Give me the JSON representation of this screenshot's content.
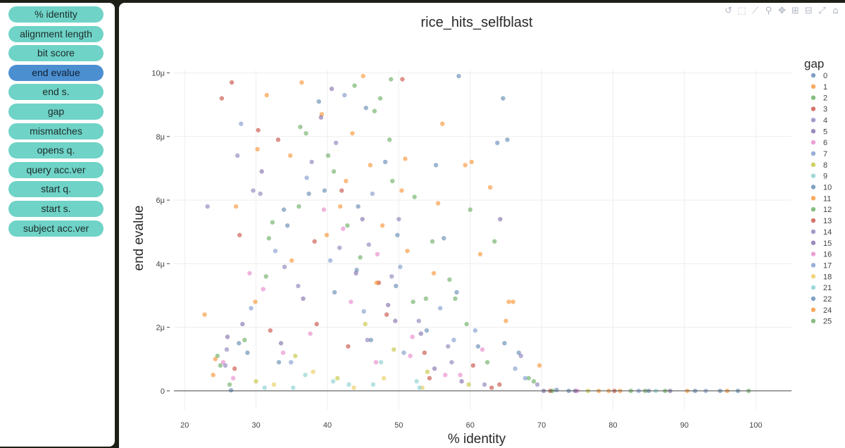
{
  "sidebar": {
    "buttons": [
      {
        "label": "% identity",
        "active": false
      },
      {
        "label": "alignment length",
        "active": false
      },
      {
        "label": "bit score",
        "active": false
      },
      {
        "label": "end evalue",
        "active": true
      },
      {
        "label": "end s.",
        "active": false
      },
      {
        "label": "gap",
        "active": false
      },
      {
        "label": "mismatches",
        "active": false
      },
      {
        "label": "opens q.",
        "active": false
      },
      {
        "label": "query acc.ver",
        "active": false
      },
      {
        "label": "start q.",
        "active": false
      },
      {
        "label": "start s.",
        "active": false
      },
      {
        "label": "subject acc.ver",
        "active": false
      }
    ]
  },
  "modebar": {
    "icons": [
      "reset-axes-icon",
      "zoom-box-icon",
      "line-icon",
      "zoom-icon",
      "pan-icon",
      "zoom-in-icon",
      "zoom-out-icon",
      "autoscale-icon",
      "home-icon"
    ]
  },
  "chart_data": {
    "type": "scatter",
    "title": "rice_hits_selfblast",
    "xlabel": "% identity",
    "ylabel": "end evalue",
    "xlim": [
      18.5,
      105
    ],
    "ylim": [
      -6e-07,
      1.01e-05
    ],
    "xticks": [
      20,
      30,
      40,
      50,
      60,
      70,
      80,
      90,
      100
    ],
    "yticks": [
      0,
      2e-06,
      4e-06,
      6e-06,
      8e-06,
      1e-05
    ],
    "ytick_labels": [
      "0",
      "2μ",
      "4μ",
      "6μ",
      "8μ",
      "10μ"
    ],
    "grid": true,
    "legend": {
      "title": "gap",
      "position": "right",
      "entries": [
        "0",
        "1",
        "2",
        "3",
        "4",
        "5",
        "6",
        "7",
        "8",
        "9",
        "10",
        "11",
        "12",
        "13",
        "14",
        "15",
        "16",
        "17",
        "18",
        "21",
        "22",
        "24",
        "25"
      ]
    },
    "series_colors": [
      "#4c78a8",
      "#f58518",
      "#54a24b",
      "#c0392b",
      "#7a6fb0",
      "#6f5a9e",
      "#e377c2",
      "#6d8bc6",
      "#bcbd22",
      "#76c8c8",
      "#4c78a8",
      "#f58518",
      "#54a24b",
      "#c0392b",
      "#7a6fb0",
      "#6f5a9e",
      "#e377c2",
      "#6d8bc6",
      "#e8c547",
      "#76c8c8",
      "#4c78a8",
      "#f58518",
      "#54a24b"
    ],
    "series": [
      {
        "name": "0",
        "x": [
          26.5,
          33.2,
          37.4,
          41.0,
          44.3,
          46.1,
          49.8,
          55.2,
          58.4,
          61.1,
          64.6,
          65.2,
          66.8,
          72.1,
          85.0,
          97.5
        ],
        "y": [
          2e-08,
          9e-07,
          6.2e-06,
          3.1e-06,
          5.8e-06,
          1.6e-06,
          4.9e-06,
          7.1e-06,
          9.9e-06,
          1.4e-06,
          9.2e-06,
          7.9e-06,
          1.2e-06,
          3e-08,
          0.0,
          0.0
        ]
      },
      {
        "name": "1",
        "x": [
          22.8,
          27.2,
          31.5,
          35.0,
          39.2,
          42.6,
          45.0,
          47.7,
          50.9,
          56.1,
          59.3,
          62.8,
          65.4,
          69.7,
          78.0,
          90.4
        ],
        "y": [
          2.4e-06,
          5.8e-06,
          9.3e-06,
          4.1e-06,
          8.7e-06,
          6.6e-06,
          9.9e-06,
          5.2e-06,
          7.3e-06,
          8.4e-06,
          7.1e-06,
          6.4e-06,
          2.8e-06,
          8e-07,
          0.0,
          0.0
        ]
      },
      {
        "name": "2",
        "x": [
          24.6,
          28.4,
          32.3,
          36.2,
          40.1,
          43.8,
          46.6,
          48.9,
          52.2,
          54.7,
          57.9,
          60.0,
          63.4,
          68.2,
          82.5,
          99.0
        ],
        "y": [
          1.1e-06,
          1.6e-06,
          5.3e-06,
          8.3e-06,
          7.4e-06,
          9.6e-06,
          8.8e-06,
          9.8e-06,
          6.1e-06,
          4.7e-06,
          2.9e-06,
          5.7e-06,
          4.7e-06,
          4e-07,
          0.0,
          0.0
        ]
      },
      {
        "name": "3",
        "x": [
          25.2,
          26.6,
          27.7,
          30.3,
          33.1,
          38.5,
          42.0,
          47.2,
          50.5,
          53.6,
          60.4,
          64.1,
          71.2,
          80.2
        ],
        "y": [
          9.2e-06,
          9.7e-06,
          4.9e-06,
          8.2e-06,
          7.9e-06,
          2.1e-06,
          6.3e-06,
          3.4e-06,
          9.8e-06,
          1.2e-06,
          8e-07,
          2e-07,
          0.0,
          0.0
        ]
      },
      {
        "name": "4",
        "x": [
          23.2,
          25.7,
          27.4,
          29.6,
          34.0,
          37.8,
          41.7,
          45.6,
          49.0,
          52.8,
          57.4,
          62.0,
          67.1
        ],
        "y": [
          5.8e-06,
          8e-07,
          7.4e-06,
          6.3e-06,
          3.9e-06,
          7.2e-06,
          4.5e-06,
          1.6e-06,
          3.6e-06,
          2.2e-06,
          9e-07,
          2e-07,
          1.1e-06
        ]
      },
      {
        "name": "5",
        "x": [
          26.0,
          30.8,
          36.6,
          40.6,
          44.9,
          48.5,
          53.1,
          58.8,
          64.2,
          70.3,
          88.0
        ],
        "y": [
          1.7e-06,
          6.9e-06,
          2.9e-06,
          9.5e-06,
          5.4e-06,
          2.7e-06,
          1.8e-06,
          3e-07,
          5.4e-06,
          0.0,
          0.0
        ]
      },
      {
        "name": "6",
        "x": [
          25.4,
          29.1,
          33.8,
          39.5,
          43.3,
          47.0,
          51.6,
          56.5,
          61.7,
          75.0
        ],
        "y": [
          9e-07,
          3.7e-06,
          1.2e-06,
          5.7e-06,
          2.8e-06,
          4.3e-06,
          1.1e-06,
          5e-07,
          1.3e-06,
          0.0
        ]
      },
      {
        "name": "7",
        "x": [
          27.9,
          32.7,
          37.1,
          42.4,
          46.3,
          50.2,
          55.8,
          60.7,
          66.3,
          83.6,
          93.0
        ],
        "y": [
          8.4e-06,
          4.4e-06,
          6.7e-06,
          9.3e-06,
          6.2e-06,
          3.9e-06,
          2.6e-06,
          1.9e-06,
          7e-07,
          0.0,
          0.0
        ]
      },
      {
        "name": "8",
        "x": [
          30.0,
          35.5,
          41.4,
          45.3,
          49.3,
          54.0,
          59.8,
          76.5
        ],
        "y": [
          3e-07,
          1.1e-06,
          4e-07,
          2.1e-06,
          1.3e-06,
          6e-07,
          2e-07,
          0.0
        ]
      },
      {
        "name": "9",
        "x": [
          31.2,
          36.9,
          43.0,
          47.5,
          52.5,
          86.0
        ],
        "y": [
          1e-07,
          5e-07,
          2e-07,
          9e-07,
          3e-07,
          0.0
        ]
      },
      {
        "name": "10",
        "x": [
          28.8,
          34.4,
          38.8,
          44.1,
          48.1,
          53.9,
          58.1,
          63.8,
          73.8,
          91.5
        ],
        "y": [
          1.2e-06,
          5.2e-06,
          9.1e-06,
          3.8e-06,
          7.2e-06,
          1.9e-06,
          3.1e-06,
          7.8e-06,
          0.0,
          0.0
        ]
      },
      {
        "name": "11",
        "x": [
          24.0,
          29.9,
          34.8,
          39.9,
          43.5,
          46.9,
          51.2,
          55.5,
          61.4,
          65.0,
          79.4,
          96.0
        ],
        "y": [
          5e-07,
          2.8e-06,
          7.4e-06,
          4.9e-06,
          8.1e-06,
          3.4e-06,
          4.4e-06,
          5.9e-06,
          4.3e-06,
          2.2e-06,
          0.0,
          0.0
        ]
      },
      {
        "name": "12",
        "x": [
          26.3,
          31.8,
          36.0,
          40.9,
          44.6,
          48.7,
          52.0,
          57.1,
          62.4,
          68.9,
          84.5
        ],
        "y": [
          2e-07,
          4.8e-06,
          5.8e-06,
          6.9e-06,
          4.2e-06,
          7.9e-06,
          2.8e-06,
          3.5e-06,
          9e-07,
          3e-07,
          0.0
        ]
      },
      {
        "name": "13",
        "x": [
          27.0,
          32.0,
          38.2,
          42.9,
          48.3,
          54.3,
          63.0
        ],
        "y": [
          7e-07,
          1.9e-06,
          4.7e-06,
          1.4e-06,
          2.4e-06,
          4e-07,
          1e-07
        ]
      },
      {
        "name": "14",
        "x": [
          25.9,
          30.6,
          35.9,
          41.2,
          45.8,
          50.0,
          56.9,
          69.4
        ],
        "y": [
          1.3e-06,
          6.2e-06,
          3.3e-06,
          7.8e-06,
          4.6e-06,
          5.4e-06,
          1.4e-06,
          2e-07
        ]
      },
      {
        "name": "15",
        "x": [
          28.1,
          33.5,
          39.1,
          44.0,
          49.5,
          55.0,
          74.7
        ],
        "y": [
          2.1e-06,
          1.5e-06,
          8.6e-06,
          3.7e-06,
          2.2e-06,
          7e-07,
          0.0
        ]
      },
      {
        "name": "16",
        "x": [
          26.8,
          31.0,
          37.6,
          42.2,
          46.8,
          51.9,
          58.6
        ],
        "y": [
          4e-07,
          3.2e-06,
          1.8e-06,
          5.1e-06,
          9e-07,
          1.7e-06,
          5e-07
        ]
      },
      {
        "name": "17",
        "x": [
          29.3,
          34.9,
          40.4,
          45.1,
          50.7,
          57.7,
          67.7
        ],
        "y": [
          2.6e-06,
          9e-07,
          4.1e-06,
          2.5e-06,
          1.2e-06,
          1.6e-06,
          4e-07
        ]
      },
      {
        "name": "18",
        "x": [
          32.5,
          38.0,
          43.7,
          47.9,
          53.3
        ],
        "y": [
          2e-07,
          6e-07,
          1e-07,
          4e-07,
          1e-07
        ]
      },
      {
        "name": "21",
        "x": [
          35.2,
          40.8,
          46.4,
          52.9
        ],
        "y": [
          1e-07,
          3e-07,
          2e-07,
          1e-07
        ]
      },
      {
        "name": "22",
        "x": [
          27.6,
          33.9,
          39.6,
          45.4,
          49.6,
          56.3,
          64.8,
          95.0
        ],
        "y": [
          1.5e-06,
          5.7e-06,
          6.3e-06,
          8.9e-06,
          3.3e-06,
          4.8e-06,
          1.5e-06,
          0.0
        ]
      },
      {
        "name": "24",
        "x": [
          24.3,
          30.2,
          36.4,
          41.8,
          46.0,
          50.4,
          54.9,
          60.2,
          66.0,
          81.0
        ],
        "y": [
          1e-06,
          7.6e-06,
          9.7e-06,
          5.8e-06,
          7.1e-06,
          6.3e-06,
          3.7e-06,
          7.2e-06,
          2.8e-06,
          0.0
        ]
      },
      {
        "name": "25",
        "x": [
          25.0,
          31.4,
          37.0,
          42.8,
          47.4,
          49.1,
          53.8,
          59.5,
          71.5,
          87.3
        ],
        "y": [
          8e-07,
          3.6e-06,
          8.1e-06,
          5.2e-06,
          9.2e-06,
          6.6e-06,
          2.9e-06,
          2.1e-06,
          0.0,
          0.0
        ]
      }
    ]
  }
}
